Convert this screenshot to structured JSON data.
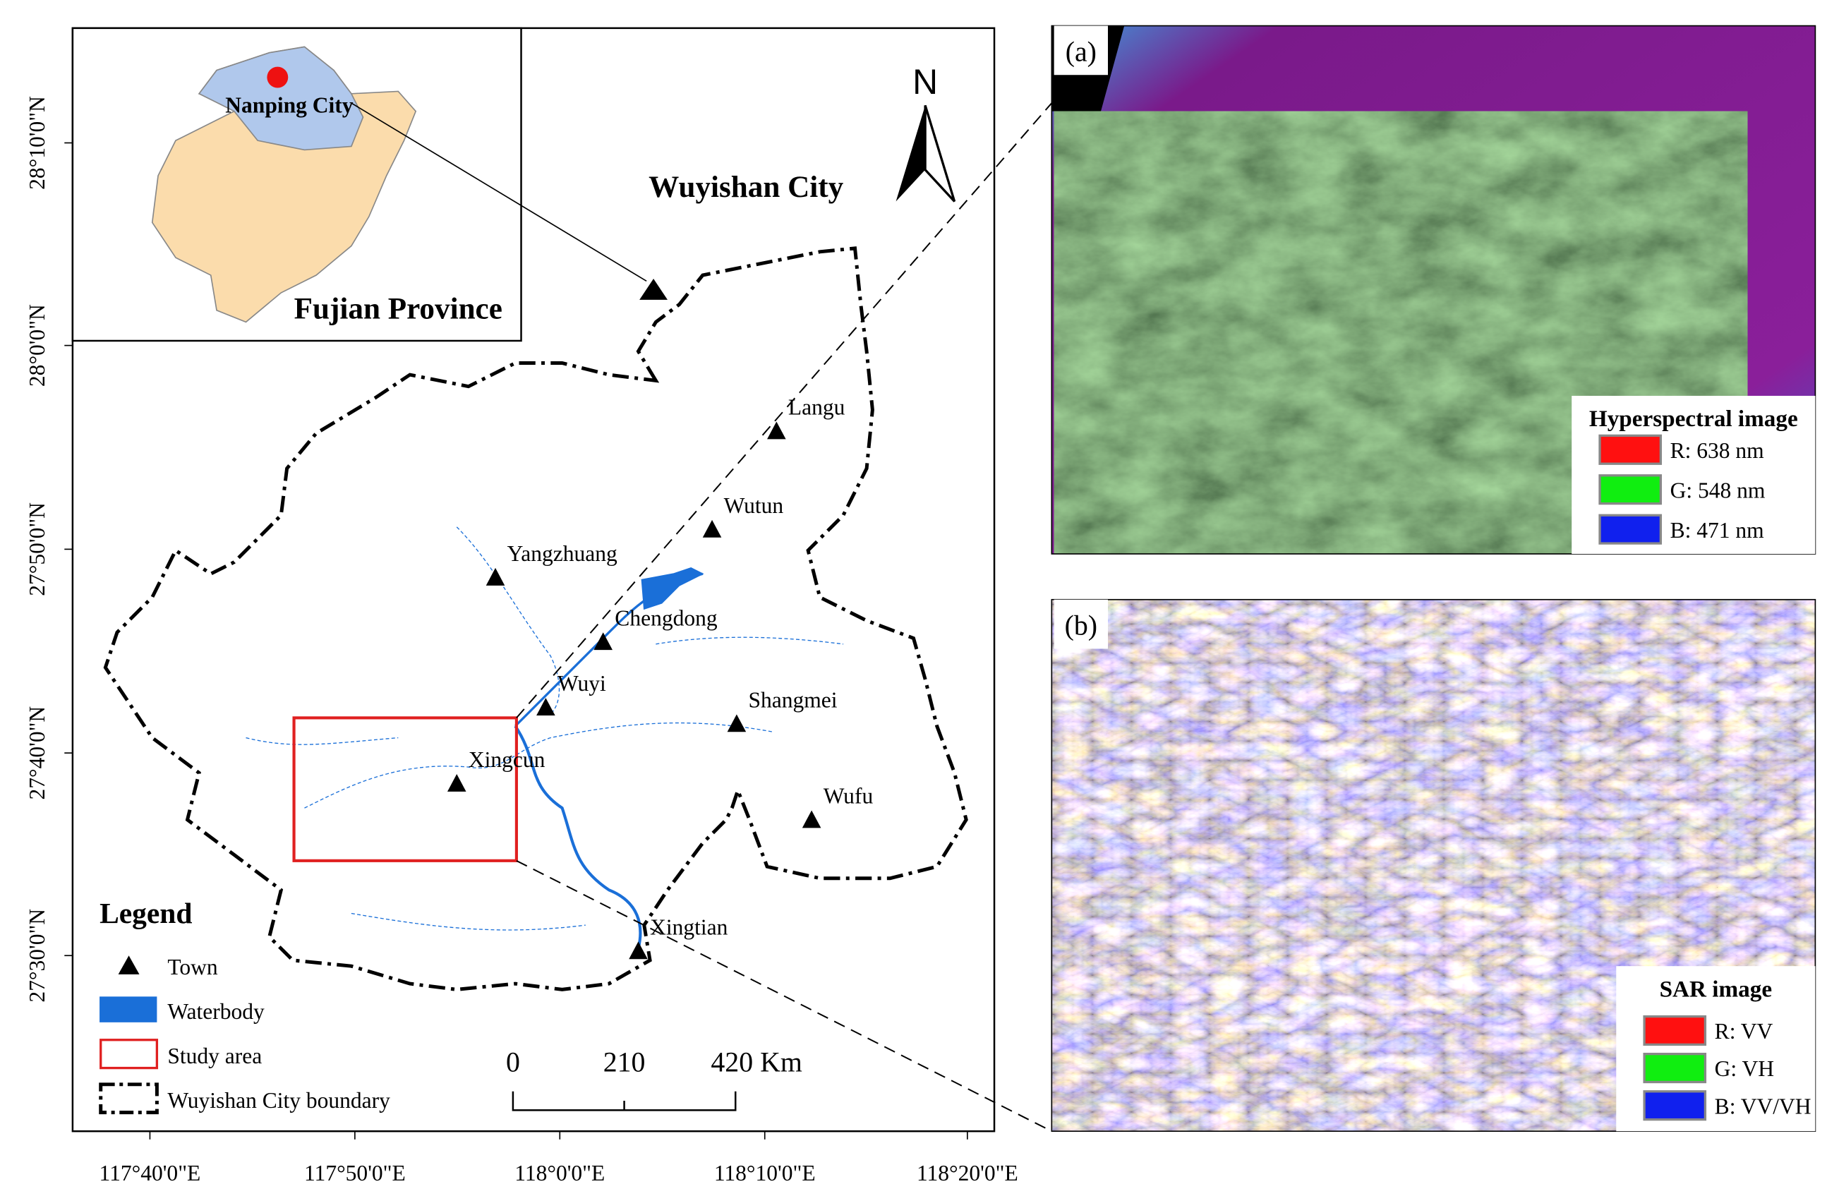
{
  "map": {
    "inset": {
      "city_label": "Nanping City",
      "province_label": "Fujian Province"
    },
    "city_label": "Wuyishan City",
    "north_label": "N",
    "towns": [
      "Langu",
      "Wutun",
      "Yangzhuang",
      "Chengdong",
      "Wuyi",
      "Shangmei",
      "Xingcun",
      "Wufu",
      "Xingtian"
    ],
    "legend": {
      "title": "Legend",
      "items": [
        "Town",
        "Waterbody",
        "Study area",
        "Wuyishan City boundary"
      ]
    },
    "scale_bar": {
      "ticks": [
        "0",
        "210",
        "420 Km"
      ]
    },
    "lat_labels": [
      "28°10'0\"N",
      "28°0'0\"N",
      "27°50'0\"N",
      "27°40'0\"N",
      "27°30'0\"N"
    ],
    "lon_labels": [
      "117°40'0\"E",
      "117°50'0\"E",
      "118°0'0\"E",
      "118°10'0\"E",
      "118°20'0\"E"
    ]
  },
  "panels": [
    {
      "label": "(a)",
      "legend_title": "Hyperspectral image",
      "bands": [
        "R: 638 nm",
        "G: 548 nm",
        "B: 471 nm"
      ]
    },
    {
      "label": "(b)",
      "legend_title": "SAR image",
      "bands": [
        "R: VV",
        "G: VH",
        "B: VV/VH"
      ]
    }
  ]
}
